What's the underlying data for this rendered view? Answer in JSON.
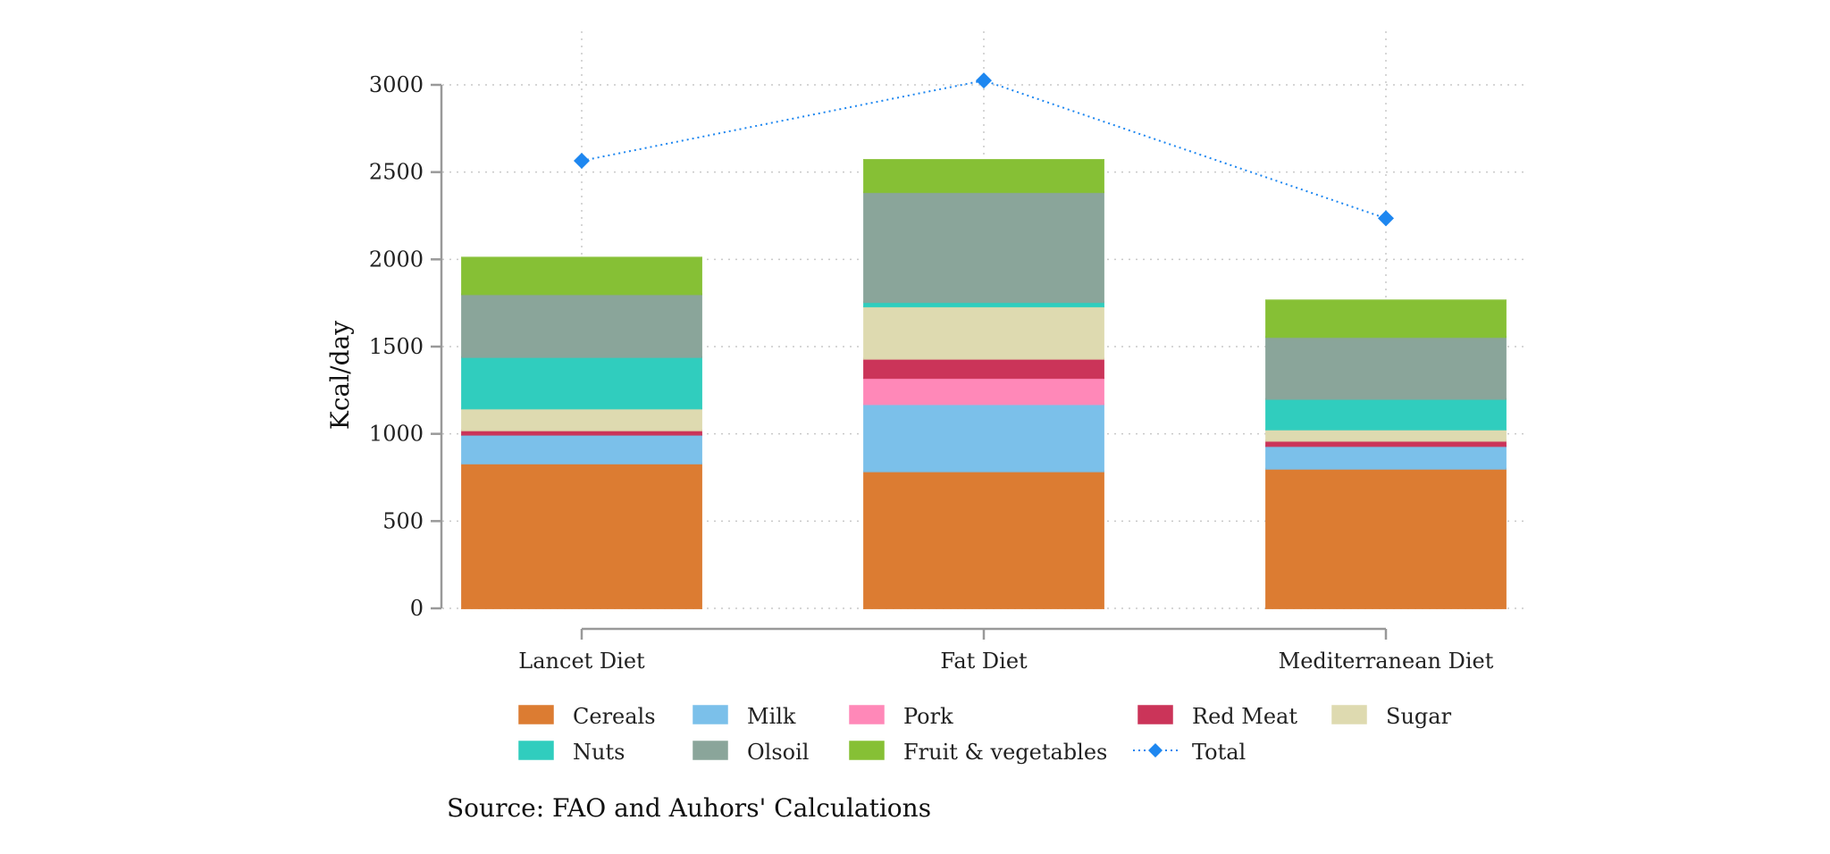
{
  "chart_data": {
    "type": "bar",
    "stacked": true,
    "categories": [
      "Lancet Diet",
      "Fat Diet",
      "Mediterranean Diet"
    ],
    "ylabel": "Kcal/day",
    "xlabel": "",
    "ylim": [
      0,
      3000
    ],
    "yticks": [
      0,
      500,
      1000,
      1500,
      2000,
      2500,
      3000
    ],
    "grid": true,
    "legend_position": "bottom",
    "series": [
      {
        "name": "Cereals",
        "color": "#DC7C32",
        "values": [
          830,
          785,
          800
        ]
      },
      {
        "name": "Milk",
        "color": "#7BC0EA",
        "values": [
          165,
          385,
          130
        ]
      },
      {
        "name": "Pork",
        "color": "#FF88B8",
        "values": [
          0,
          150,
          0
        ]
      },
      {
        "name": "Red Meat",
        "color": "#CB3459",
        "values": [
          25,
          110,
          30
        ]
      },
      {
        "name": "Sugar",
        "color": "#DEDAB0",
        "values": [
          125,
          300,
          65
        ]
      },
      {
        "name": "Nuts",
        "color": "#30CDBE",
        "values": [
          295,
          25,
          175
        ]
      },
      {
        "name": "Olsoil",
        "color": "#8AA59A",
        "values": [
          360,
          630,
          355
        ]
      },
      {
        "name": "Fruit & vegetables",
        "color": "#86C035",
        "values": [
          210,
          185,
          210
        ]
      }
    ],
    "line_series": {
      "name": "Total",
      "color": "#1E87F0",
      "values": [
        2565,
        3025,
        2235
      ]
    }
  },
  "source_note": "Source:  FAO and Auhors' Calculations"
}
